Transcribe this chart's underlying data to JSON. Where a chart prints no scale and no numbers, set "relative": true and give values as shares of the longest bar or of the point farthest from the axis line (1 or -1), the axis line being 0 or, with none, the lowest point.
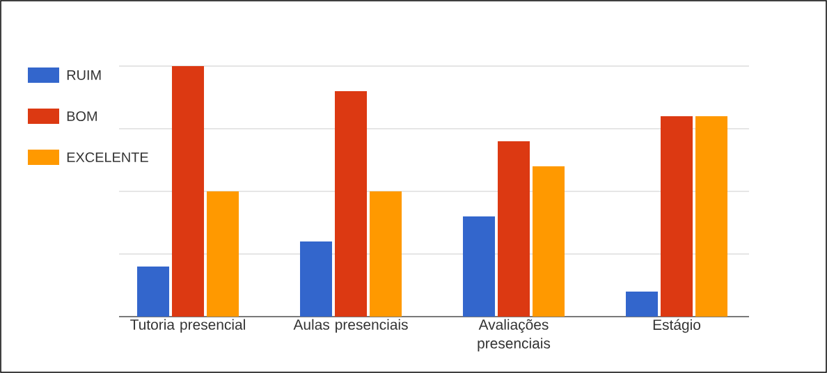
{
  "chart_data": {
    "type": "bar",
    "relative": true,
    "grid": "y",
    "legend": "left",
    "categories": [
      "Tutoria presencial",
      "Aulas presenciais",
      "Avaliações presenciais",
      "Estágio"
    ],
    "series": [
      {
        "name": "RUIM",
        "color": "#3366cc",
        "values": [
          0.2,
          0.3,
          0.4,
          0.1
        ]
      },
      {
        "name": "BOM",
        "color": "#dc3912",
        "values": [
          1,
          0.9,
          0.7,
          0.8
        ]
      },
      {
        "name": "EXCELENTE",
        "color": "#ff9900",
        "values": [
          0.5,
          0.5,
          0.6,
          0.8
        ]
      }
    ]
  }
}
